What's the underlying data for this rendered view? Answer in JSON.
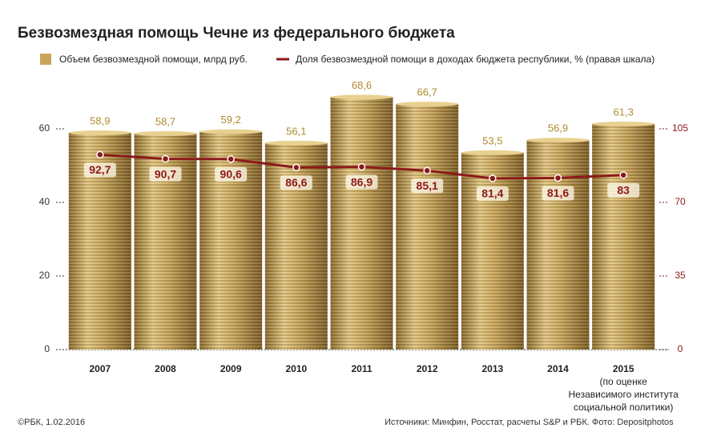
{
  "chart_data": {
    "type": "bar-line",
    "title": "Безвозмездная помощь Чечне из федерального бюджета",
    "categories": [
      "2007",
      "2008",
      "2009",
      "2010",
      "2011",
      "2012",
      "2013",
      "2014",
      "2015"
    ],
    "x_note": [
      "(по оценке",
      "Независимого института",
      "социальной политики)"
    ],
    "series": [
      {
        "name": "Объем безвозмездной помощи, млрд руб.",
        "type": "bar",
        "color": "#c8a55a",
        "values": [
          58.9,
          58.7,
          59.2,
          56.1,
          68.6,
          66.7,
          53.5,
          56.9,
          61.3
        ],
        "value_labels": [
          "58,9",
          "58,7",
          "59,2",
          "56,1",
          "68,6",
          "66,7",
          "53,5",
          "56,9",
          "61,3"
        ]
      },
      {
        "name": "Доля безвозмездной помощи в доходах бюджета республики, % (правая шкала)",
        "type": "line",
        "axis": "y2",
        "color": "#8b1a1a",
        "values": [
          92.7,
          90.7,
          90.6,
          86.6,
          86.9,
          85.1,
          81.4,
          81.6,
          83
        ],
        "value_labels": [
          "92,7",
          "90,7",
          "90,6",
          "86,6",
          "86,9",
          "85,1",
          "81,4",
          "81,6",
          "83"
        ]
      }
    ],
    "ylim": [
      0,
      60
    ],
    "yticks": [
      0,
      20,
      40,
      60
    ],
    "y2lim": [
      0,
      105
    ],
    "y2ticks": [
      0,
      35,
      70,
      105
    ],
    "grid": false,
    "credit": "©РБК, 1.02.2016",
    "source": "Источники: Минфин, Росстат, расчеты S&P и РБК. Фото: Depositphotos"
  }
}
